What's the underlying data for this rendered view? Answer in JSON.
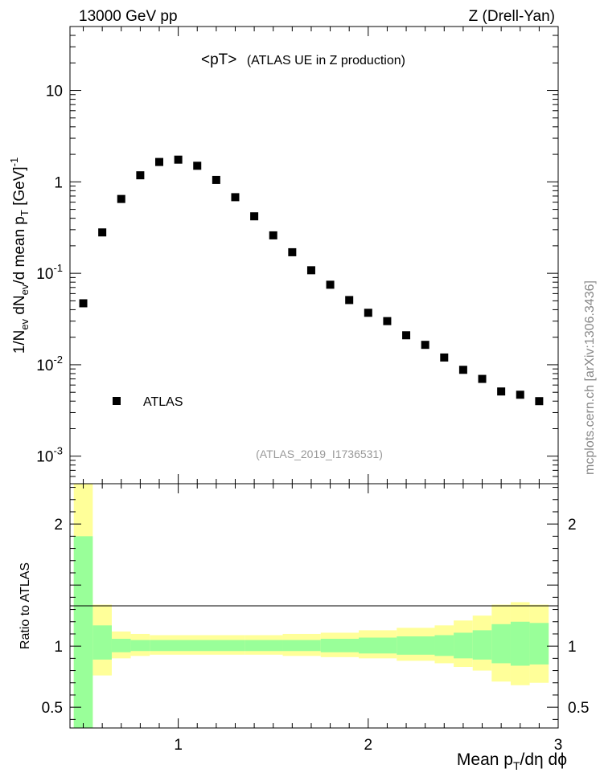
{
  "header": {
    "left": "13000 GeV pp",
    "right": "Z (Drell-Yan)",
    "side_text": "mcplots.cern.ch [arXiv:1306.3436]"
  },
  "chart_data": [
    {
      "type": "scatter",
      "title": "<pT>",
      "subtitle": "(ATLAS UE in Z production)",
      "reference_label": "(ATLAS_2019_I1736531)",
      "ylabel": "1/N_ev dN_ev/d mean p_T [GeV]^-1",
      "yscale": "log",
      "ylim": [
        0.0005,
        50
      ],
      "xlim": [
        0.43,
        3.0
      ],
      "y_ticks": [
        {
          "value": 0.001,
          "label": "10",
          "exp": "-3"
        },
        {
          "value": 0.01,
          "label": "10",
          "exp": "-2"
        },
        {
          "value": 0.1,
          "label": "10",
          "exp": "-1"
        },
        {
          "value": 1,
          "label": "1",
          "exp": ""
        },
        {
          "value": 10,
          "label": "10",
          "exp": ""
        }
      ],
      "legend": {
        "position": "bottom-left",
        "entries": [
          "ATLAS"
        ]
      },
      "series": [
        {
          "name": "ATLAS",
          "marker": "square",
          "x": [
            0.5,
            0.6,
            0.7,
            0.8,
            0.9,
            1.0,
            1.1,
            1.2,
            1.3,
            1.4,
            1.5,
            1.6,
            1.7,
            1.8,
            1.9,
            2.0,
            2.1,
            2.2,
            2.3,
            2.4,
            2.5,
            2.6,
            2.7,
            2.8,
            2.9
          ],
          "y": [
            0.047,
            0.28,
            0.65,
            1.18,
            1.65,
            1.75,
            1.5,
            1.05,
            0.68,
            0.42,
            0.26,
            0.17,
            0.108,
            0.075,
            0.051,
            0.037,
            0.03,
            0.021,
            0.0165,
            0.012,
            0.0088,
            0.007,
            0.0051,
            0.0047,
            0.004
          ]
        }
      ]
    },
    {
      "type": "area",
      "ylabel": "Ratio to ATLAS",
      "xlabel": "Mean p_T/dη dϕ",
      "ylim": [
        0.33,
        2.33
      ],
      "xlim": [
        0.43,
        3.0
      ],
      "x_ticks": [
        1,
        2,
        3
      ],
      "y_ticks": [
        0.5,
        1,
        2
      ],
      "reference_line": 1,
      "bands": [
        {
          "name": "yellow",
          "color": "#ffff99",
          "bins": [
            [
              0.45,
              0.55,
              0.33,
              2.33
            ],
            [
              0.55,
              0.65,
              0.76,
              1.34
            ],
            [
              0.65,
              0.75,
              0.9,
              1.12
            ],
            [
              0.75,
              0.85,
              0.92,
              1.1
            ],
            [
              0.85,
              1.35,
              0.93,
              1.09
            ],
            [
              1.35,
              1.55,
              0.93,
              1.09
            ],
            [
              1.55,
              1.75,
              0.92,
              1.1
            ],
            [
              1.75,
              1.95,
              0.91,
              1.11
            ],
            [
              1.95,
              2.15,
              0.9,
              1.13
            ],
            [
              2.15,
              2.35,
              0.88,
              1.15
            ],
            [
              2.35,
              2.45,
              0.86,
              1.17
            ],
            [
              2.45,
              2.55,
              0.83,
              1.21
            ],
            [
              2.55,
              2.65,
              0.8,
              1.25
            ],
            [
              2.65,
              2.75,
              0.71,
              1.34
            ],
            [
              2.75,
              2.85,
              0.68,
              1.36
            ],
            [
              2.85,
              2.95,
              0.7,
              1.34
            ]
          ]
        },
        {
          "name": "green",
          "color": "#99ff99",
          "bins": [
            [
              0.45,
              0.55,
              0.33,
              1.9
            ],
            [
              0.55,
              0.65,
              0.89,
              1.17
            ],
            [
              0.65,
              0.75,
              0.95,
              1.06
            ],
            [
              0.75,
              0.85,
              0.96,
              1.05
            ],
            [
              0.85,
              1.35,
              0.96,
              1.05
            ],
            [
              1.35,
              1.55,
              0.96,
              1.05
            ],
            [
              1.55,
              1.75,
              0.96,
              1.05
            ],
            [
              1.75,
              1.95,
              0.95,
              1.06
            ],
            [
              1.95,
              2.15,
              0.94,
              1.07
            ],
            [
              2.15,
              2.35,
              0.93,
              1.08
            ],
            [
              2.35,
              2.45,
              0.92,
              1.09
            ],
            [
              2.45,
              2.55,
              0.9,
              1.11
            ],
            [
              2.55,
              2.65,
              0.89,
              1.13
            ],
            [
              2.65,
              2.75,
              0.86,
              1.18
            ],
            [
              2.75,
              2.85,
              0.84,
              1.2
            ],
            [
              2.85,
              2.95,
              0.85,
              1.19
            ]
          ]
        }
      ]
    }
  ]
}
